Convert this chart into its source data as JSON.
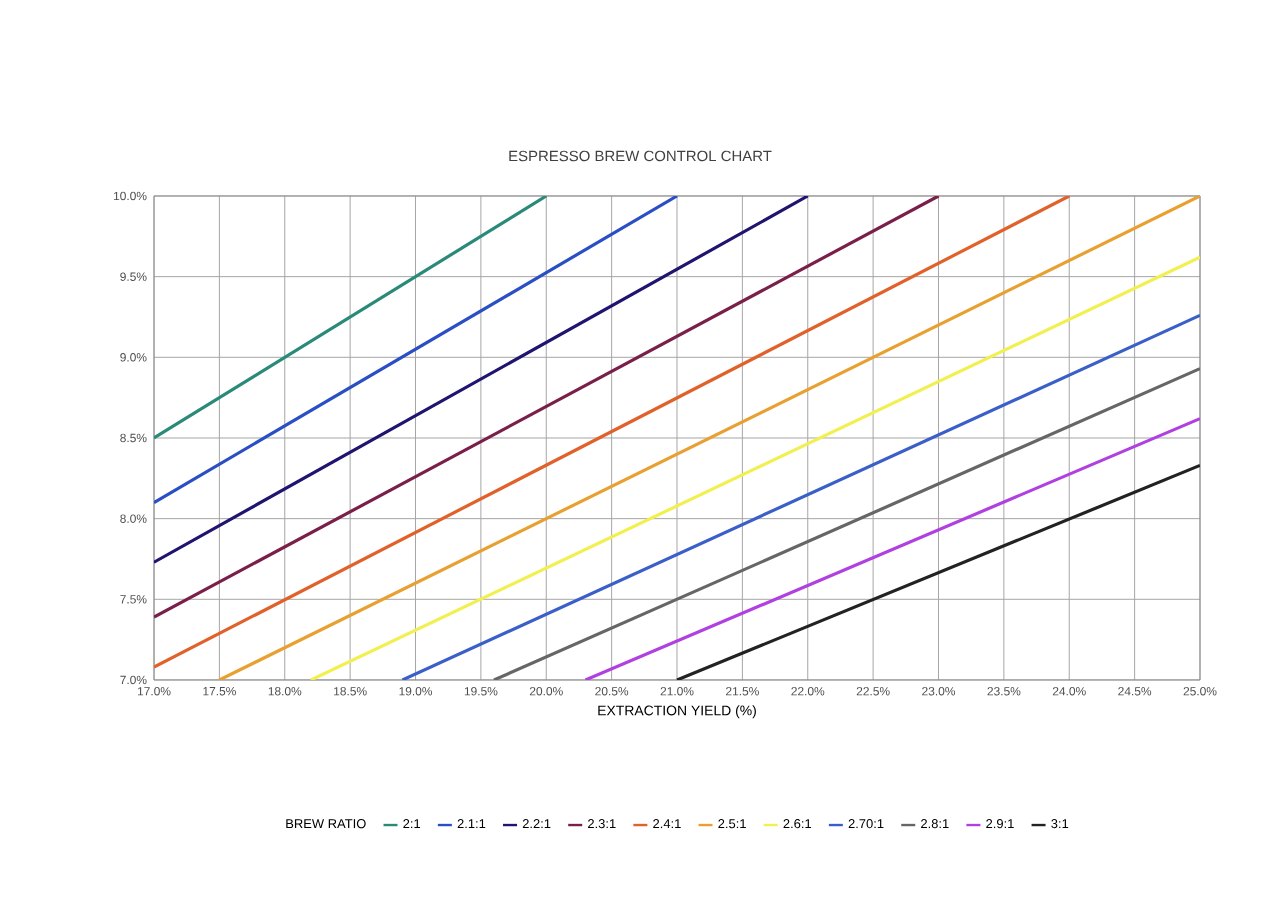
{
  "chart_data": {
    "type": "line",
    "title": "ESPRESSO BREW CONTROL CHART",
    "xlabel": "EXTRACTION YIELD (%)",
    "legend_title": "BREW RATIO",
    "xlim": [
      17,
      25
    ],
    "ylim": [
      7,
      10
    ],
    "xticks": [
      {
        "value": 17,
        "label": "17.0%"
      },
      {
        "value": 17.5,
        "label": "17.5%"
      },
      {
        "value": 18,
        "label": "18.0%"
      },
      {
        "value": 18.5,
        "label": "18.5%"
      },
      {
        "value": 19,
        "label": "19.0%"
      },
      {
        "value": 19.5,
        "label": "19.5%"
      },
      {
        "value": 20,
        "label": "20.0%"
      },
      {
        "value": 20.5,
        "label": "20.5%"
      },
      {
        "value": 21,
        "label": "21.0%"
      },
      {
        "value": 21.5,
        "label": "21.5%"
      },
      {
        "value": 22,
        "label": "22.0%"
      },
      {
        "value": 22.5,
        "label": "22.5%"
      },
      {
        "value": 23,
        "label": "23.0%"
      },
      {
        "value": 23.5,
        "label": "23.5%"
      },
      {
        "value": 24,
        "label": "24.0%"
      },
      {
        "value": 24.5,
        "label": "24.5%"
      },
      {
        "value": 25,
        "label": "25.0%"
      }
    ],
    "yticks": [
      {
        "value": 7,
        "label": "7.0%"
      },
      {
        "value": 7.5,
        "label": "7.5%"
      },
      {
        "value": 8,
        "label": "8.0%"
      },
      {
        "value": 8.5,
        "label": "8.5%"
      },
      {
        "value": 9,
        "label": "9.0%"
      },
      {
        "value": 9.5,
        "label": "9.5%"
      },
      {
        "value": 10,
        "label": "10.0%"
      }
    ],
    "grid": true,
    "legend": "bottom",
    "marker": "none",
    "line_style": "solid",
    "series": [
      {
        "name": "2:1",
        "color": "#2a8a7a",
        "x": [
          17,
          20
        ],
        "values": [
          8.5,
          10
        ]
      },
      {
        "name": "2.1:1",
        "color": "#2a4fc4",
        "x": [
          17,
          21
        ],
        "values": [
          8.1,
          10
        ]
      },
      {
        "name": "2.2:1",
        "color": "#1f1470",
        "x": [
          17,
          22
        ],
        "values": [
          7.73,
          10
        ]
      },
      {
        "name": "2.3:1",
        "color": "#7a1f4a",
        "x": [
          17,
          23
        ],
        "values": [
          7.39,
          10
        ]
      },
      {
        "name": "2.4:1",
        "color": "#e0622a",
        "x": [
          17,
          24
        ],
        "values": [
          7.08,
          10
        ]
      },
      {
        "name": "2.5:1",
        "color": "#e8a030",
        "x": [
          17.5,
          25
        ],
        "values": [
          7,
          10
        ]
      },
      {
        "name": "2.6:1",
        "color": "#f2f050",
        "x": [
          18.2,
          25
        ],
        "values": [
          7,
          9.62
        ]
      },
      {
        "name": "2.70:1",
        "color": "#3a5fc8",
        "x": [
          18.9,
          25
        ],
        "values": [
          7,
          9.26
        ]
      },
      {
        "name": "2.8:1",
        "color": "#666666",
        "x": [
          19.6,
          25
        ],
        "values": [
          7,
          8.93
        ]
      },
      {
        "name": "2.9:1",
        "color": "#b040e0",
        "x": [
          20.3,
          25
        ],
        "values": [
          7,
          8.62
        ]
      },
      {
        "name": "3:1",
        "color": "#222222",
        "x": [
          21,
          25
        ],
        "values": [
          7,
          8.33
        ]
      }
    ]
  }
}
